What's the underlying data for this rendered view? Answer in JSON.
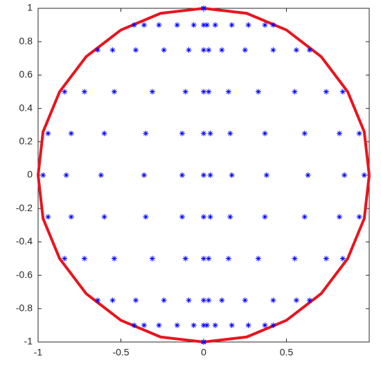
{
  "chart_data": {
    "type": "scatter",
    "xlim": [
      -1,
      1
    ],
    "ylim": [
      -1,
      1
    ],
    "xticks": [
      -1,
      -0.5,
      0,
      0.5
    ],
    "yticks": [
      -1,
      -0.8,
      -0.6,
      -0.4,
      -0.2,
      0,
      0.2,
      0.4,
      0.6,
      0.8,
      1
    ],
    "series": [
      {
        "mode": "line",
        "color": "#e8141e",
        "x": [
          1,
          0.97,
          0.87,
          0.71,
          0.5,
          0.26,
          0,
          -0.26,
          -0.5,
          -0.71,
          -0.87,
          -0.97,
          -1,
          -0.97,
          -0.87,
          -0.71,
          -0.5,
          -0.26,
          0,
          0.26,
          0.5,
          0.71,
          0.87,
          0.97,
          1
        ],
        "y": [
          0,
          0.26,
          0.5,
          0.71,
          0.87,
          0.97,
          1,
          0.97,
          0.87,
          0.71,
          0.5,
          0.26,
          0,
          -0.26,
          -0.5,
          -0.71,
          -0.87,
          -0.97,
          -1,
          -0.97,
          -0.87,
          -0.71,
          -0.5,
          -0.26,
          0
        ]
      },
      {
        "mode": "marker",
        "color": "#0000ff",
        "x": [
          0,
          -0.42,
          -0.64,
          -0.84,
          -0.94,
          -0.97,
          -0.94,
          -0.84,
          -0.64,
          -0.42,
          0
        ],
        "y": [
          1,
          0.9,
          0.75,
          0.5,
          0.25,
          0,
          -0.25,
          -0.5,
          -0.75,
          -0.9,
          -1
        ]
      },
      {
        "mode": "marker",
        "color": "#0000ff",
        "x": [
          0,
          -0.36,
          -0.55,
          -0.72,
          -0.8,
          -0.83,
          -0.8,
          -0.72,
          -0.55,
          -0.36,
          0
        ],
        "y": [
          1,
          0.9,
          0.75,
          0.5,
          0.25,
          0,
          -0.25,
          -0.5,
          -0.75,
          -0.9,
          -1
        ]
      },
      {
        "mode": "marker",
        "color": "#0000ff",
        "x": [
          0,
          -0.27,
          -0.41,
          -0.54,
          -0.6,
          -0.62,
          -0.6,
          -0.54,
          -0.41,
          -0.27,
          0
        ],
        "y": [
          1,
          0.9,
          0.75,
          0.5,
          0.25,
          0,
          -0.25,
          -0.5,
          -0.75,
          -0.9,
          -1
        ]
      },
      {
        "mode": "marker",
        "color": "#0000ff",
        "x": [
          0,
          -0.16,
          -0.24,
          -0.31,
          -0.35,
          -0.36,
          -0.35,
          -0.31,
          -0.24,
          -0.16,
          0
        ],
        "y": [
          1,
          0.9,
          0.75,
          0.5,
          0.25,
          0,
          -0.25,
          -0.5,
          -0.75,
          -0.9,
          -1
        ]
      },
      {
        "mode": "marker",
        "color": "#0000ff",
        "x": [
          0,
          -0.06,
          -0.09,
          -0.11,
          -0.13,
          -0.13,
          -0.13,
          -0.11,
          -0.09,
          -0.06,
          0
        ],
        "y": [
          1,
          0.9,
          0.75,
          0.5,
          0.25,
          0,
          -0.25,
          -0.5,
          -0.75,
          -0.9,
          -1
        ]
      },
      {
        "mode": "marker",
        "color": "#0000ff",
        "x": [
          0,
          0,
          0,
          0,
          0,
          0,
          0,
          0,
          0,
          0,
          0
        ],
        "y": [
          1,
          0.9,
          0.75,
          0.5,
          0.25,
          0,
          -0.25,
          -0.5,
          -0.75,
          -0.9,
          -1
        ]
      },
      {
        "mode": "marker",
        "color": "#0000ff",
        "x": [
          0,
          0.02,
          0.03,
          0.03,
          0.04,
          0.04,
          0.04,
          0.03,
          0.03,
          0.02,
          0
        ],
        "y": [
          1,
          0.9,
          0.75,
          0.5,
          0.25,
          0,
          -0.25,
          -0.5,
          -0.75,
          -0.9,
          -1
        ]
      },
      {
        "mode": "marker",
        "color": "#0000ff",
        "x": [
          0,
          0.07,
          0.11,
          0.15,
          0.16,
          0.17,
          0.16,
          0.15,
          0.11,
          0.07,
          0
        ],
        "y": [
          1,
          0.9,
          0.75,
          0.5,
          0.25,
          0,
          -0.25,
          -0.5,
          -0.75,
          -0.9,
          -1
        ]
      },
      {
        "mode": "marker",
        "color": "#0000ff",
        "x": [
          0,
          0.17,
          0.25,
          0.33,
          0.37,
          0.38,
          0.37,
          0.33,
          0.25,
          0.17,
          0
        ],
        "y": [
          1,
          0.9,
          0.75,
          0.5,
          0.25,
          0,
          -0.25,
          -0.5,
          -0.75,
          -0.9,
          -1
        ]
      },
      {
        "mode": "marker",
        "color": "#0000ff",
        "x": [
          0,
          0.27,
          0.42,
          0.55,
          0.61,
          0.63,
          0.61,
          0.55,
          0.42,
          0.27,
          0
        ],
        "y": [
          1,
          0.9,
          0.75,
          0.5,
          0.25,
          0,
          -0.25,
          -0.5,
          -0.75,
          -0.9,
          -1
        ]
      },
      {
        "mode": "marker",
        "color": "#0000ff",
        "x": [
          0,
          0.37,
          0.56,
          0.74,
          0.82,
          0.85,
          0.82,
          0.74,
          0.56,
          0.37,
          0
        ],
        "y": [
          1,
          0.9,
          0.75,
          0.5,
          0.25,
          0,
          -0.25,
          -0.5,
          -0.75,
          -0.9,
          -1
        ]
      },
      {
        "mode": "marker",
        "color": "#0000ff",
        "x": [
          0,
          0.42,
          0.64,
          0.84,
          0.94,
          0.97,
          0.94,
          0.84,
          0.64,
          0.42,
          0
        ],
        "y": [
          1,
          0.9,
          0.75,
          0.5,
          0.25,
          0,
          -0.25,
          -0.5,
          -0.75,
          -0.9,
          -1
        ]
      }
    ]
  }
}
